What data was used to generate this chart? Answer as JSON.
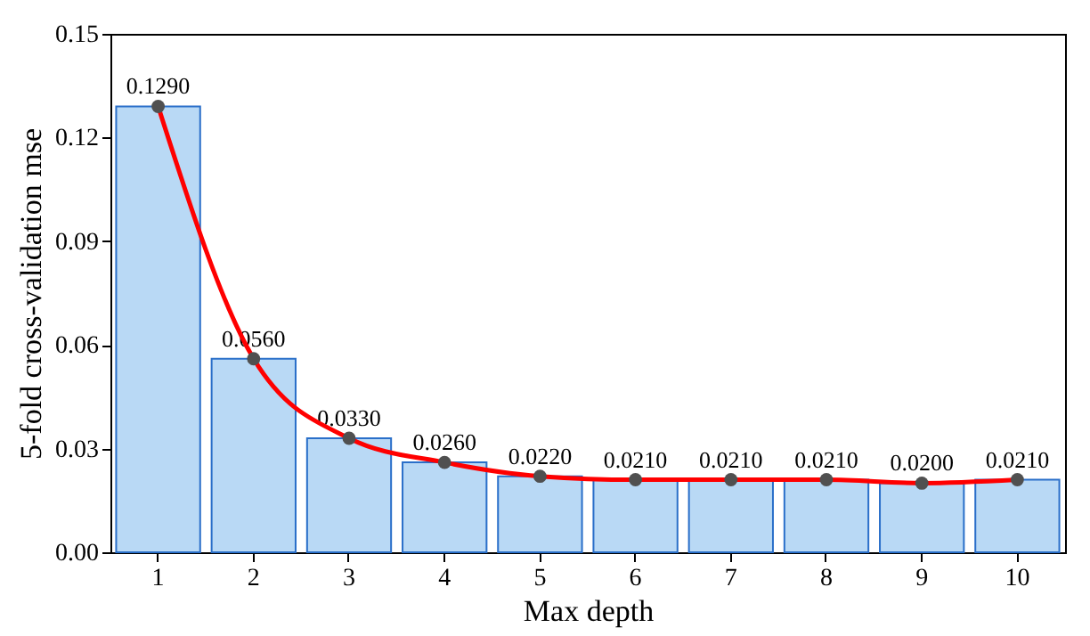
{
  "chart_data": {
    "type": "bar",
    "xlabel": "Max depth",
    "ylabel": "5-fold cross-validation mse",
    "categories": [
      "1",
      "2",
      "3",
      "4",
      "5",
      "6",
      "7",
      "8",
      "9",
      "10"
    ],
    "series": [
      {
        "color": "#b9d9f5",
        "values": [
          0.129,
          0.056,
          0.033,
          0.026,
          0.022,
          0.021,
          0.021,
          0.021,
          0.02,
          0.021
        ],
        "value_labels": [
          "0.1290",
          "0.0560",
          "0.0330",
          "0.0260",
          "0.0220",
          "0.0210",
          "0.0210",
          "0.0210",
          "0.0200",
          "0.0210"
        ]
      },
      {
        "type": "line",
        "color": "#ff0000",
        "marker": "circle",
        "values": [
          0.129,
          0.056,
          0.033,
          0.026,
          0.022,
          0.021,
          0.021,
          0.021,
          0.02,
          0.021
        ]
      }
    ],
    "ylim": [
      0,
      0.15
    ],
    "yticks": [
      {
        "value": 0,
        "label": "0.00"
      },
      0.03,
      0.06,
      0.09,
      0.12,
      0.15
    ],
    "grid": false
  }
}
